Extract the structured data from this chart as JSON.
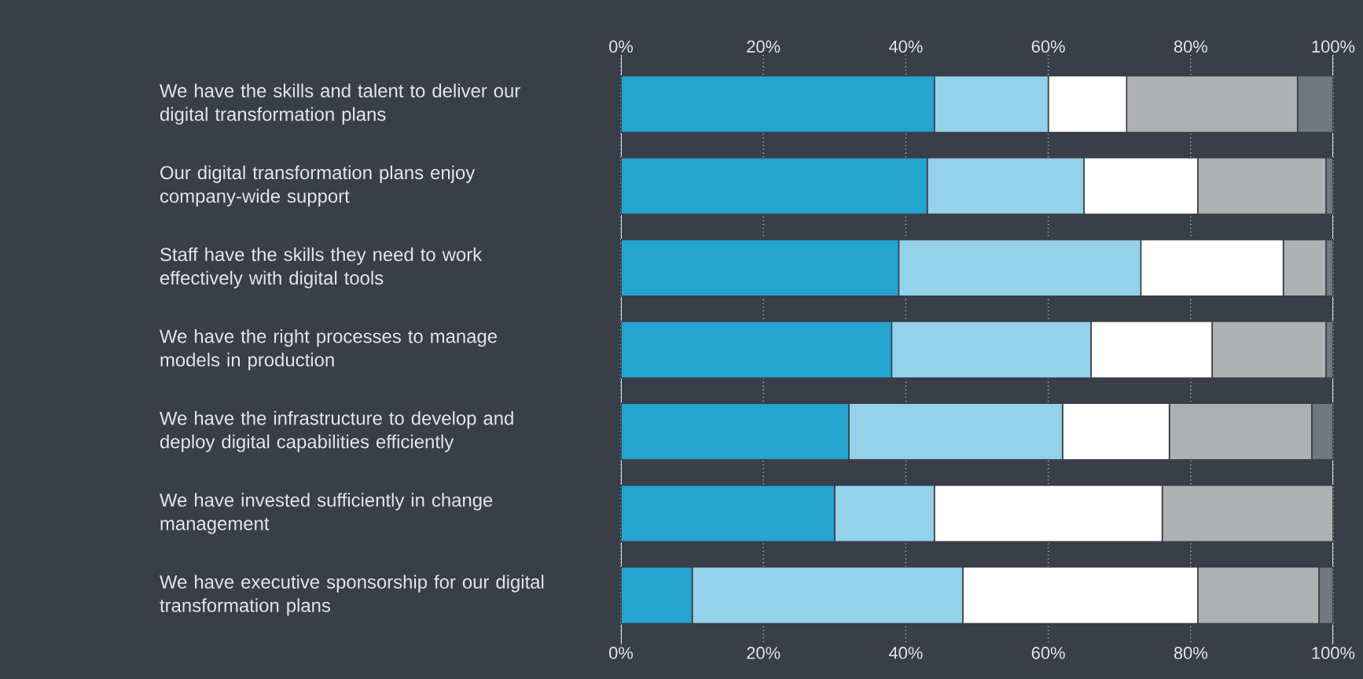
{
  "chart_data": {
    "type": "bar",
    "orientation": "horizontal",
    "stacked": true,
    "grid": "x",
    "categories": [
      "We have the skills and talent to deliver our digital transformation plans",
      "Our digital transformation plans enjoy company-wide support",
      "Staff have the skills they need to work effectively with digital tools",
      "We have the right processes to manage models in production",
      "We have the infrastructure to develop and deploy digital capabilities efficiently",
      "We have invested sufficiently in change management",
      "We have executive sponsorship for our digital transformation plans"
    ],
    "series": [
      {
        "color": "#25a4d0",
        "values": [
          44,
          43,
          39,
          38,
          32,
          30,
          10
        ]
      },
      {
        "color": "#94d2ea",
        "values": [
          16,
          22,
          34,
          28,
          30,
          14,
          38
        ]
      },
      {
        "color": "#ffffff",
        "values": [
          11,
          16,
          20,
          17,
          15,
          32,
          33
        ]
      },
      {
        "color": "#aeb0b2",
        "values": [
          24,
          18,
          6,
          16,
          20,
          24,
          17
        ]
      },
      {
        "color": "#737780",
        "values": [
          5,
          1,
          1,
          1,
          3,
          0,
          2
        ]
      }
    ],
    "xlim": [
      0,
      100
    ],
    "xticks": [
      {
        "value": 0,
        "label": "0%"
      },
      {
        "value": 20,
        "label": "20%"
      },
      {
        "value": 40,
        "label": "40%"
      },
      {
        "value": 60,
        "label": "60%"
      },
      {
        "value": 80,
        "label": "80%"
      },
      {
        "value": 100,
        "label": "100%"
      }
    ],
    "x2lim": [
      0,
      100
    ],
    "x2ticks": [
      {
        "value": 0,
        "label": "0%"
      },
      {
        "value": 20,
        "label": "20%"
      },
      {
        "value": 40,
        "label": "40%"
      },
      {
        "value": 60,
        "label": "60%"
      },
      {
        "value": 80,
        "label": "80%"
      },
      {
        "value": 100,
        "label": "100%"
      }
    ]
  }
}
